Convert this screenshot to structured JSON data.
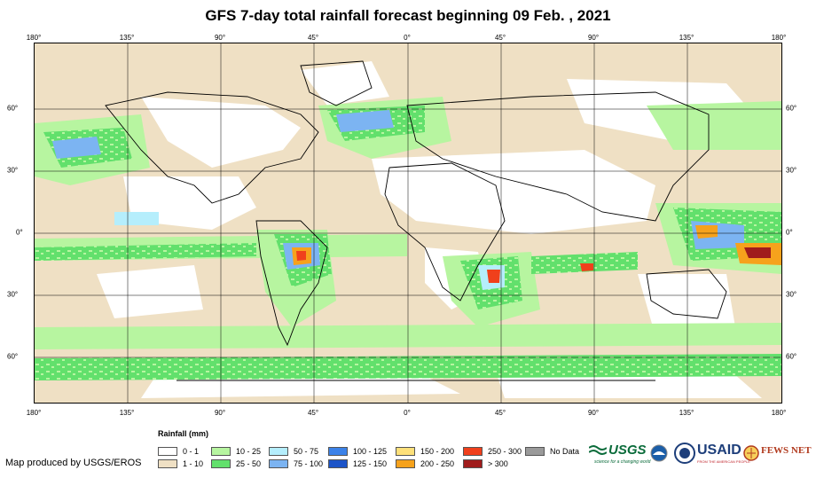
{
  "title": "GFS 7-day total rainfall forecast beginning 09 Feb. , 2021",
  "longitude_ticks": [
    "180°",
    "135°",
    "90°",
    "45°",
    "0°",
    "45°",
    "90°",
    "135°",
    "180°"
  ],
  "latitude_ticks": [
    "60°",
    "30°",
    "0°",
    "30°",
    "60°"
  ],
  "legend": {
    "title": "Rainfall (mm)",
    "classes": [
      {
        "label": "0 - 1",
        "color": "#ffffff"
      },
      {
        "label": "1 - 10",
        "color": "#efe0c4"
      },
      {
        "label": "10 - 25",
        "color": "#b7f5a0"
      },
      {
        "label": "25 - 50",
        "color": "#62e06c"
      },
      {
        "label": "50 - 75",
        "color": "#b5eefc"
      },
      {
        "label": "75 - 100",
        "color": "#7cb4f2"
      },
      {
        "label": "100 - 125",
        "color": "#3c82e8"
      },
      {
        "label": "125 - 150",
        "color": "#1c54c8"
      },
      {
        "label": "150 - 200",
        "color": "#fde07a"
      },
      {
        "label": "200 - 250",
        "color": "#f6a21c"
      },
      {
        "label": "250 - 300",
        "color": "#f0401c"
      },
      {
        "label": "> 300",
        "color": "#a01c1c"
      },
      {
        "label": "No Data",
        "color": "#9a9a9a"
      }
    ]
  },
  "credit": "Map produced by USGS/EROS",
  "logos": {
    "usgs": "USGS",
    "usgs_tagline": "science for a changing world",
    "usaid": "USAID",
    "usaid_tagline": "FROM THE AMERICAN PEOPLE",
    "fewsnet": "FEWS NET"
  }
}
